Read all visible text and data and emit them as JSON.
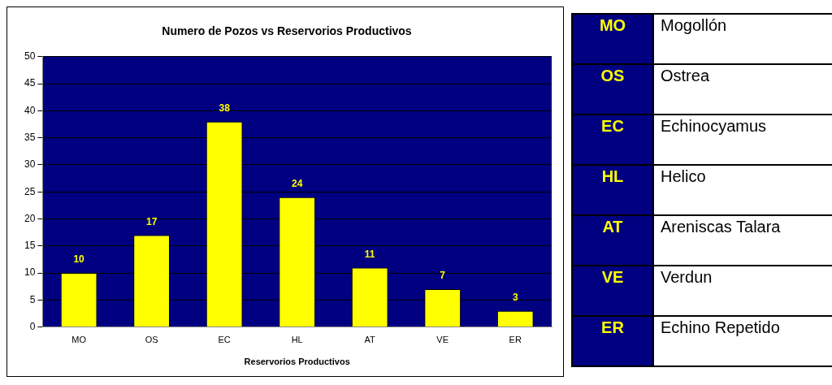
{
  "chart_data": {
    "type": "bar",
    "title": "Numero de Pozos vs Reservorios Productivos",
    "xlabel": "Reservorios Productivos",
    "categories": [
      "MO",
      "OS",
      "EC",
      "HL",
      "AT",
      "VE",
      "ER"
    ],
    "values": [
      10,
      17,
      38,
      24,
      11,
      7,
      3
    ],
    "color": "#ffff00",
    "ylim": [
      0,
      50
    ],
    "yticks": [
      0,
      5,
      10,
      15,
      20,
      25,
      30,
      35,
      40,
      45,
      50
    ],
    "grid": "y",
    "legend": false,
    "data_labels": true,
    "annotations": [
      "MO",
      "Mogollón",
      "OS",
      "Ostrea",
      "EC",
      "Echinocyamus",
      "HL",
      "Helico",
      "AT",
      "Areniscas Talara",
      "VE",
      "Verdun",
      "ER",
      "Echino Repetido"
    ]
  }
}
